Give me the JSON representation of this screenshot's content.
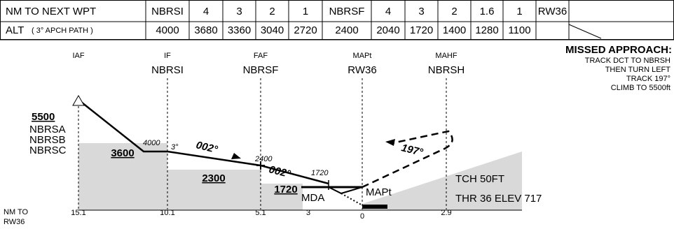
{
  "table": {
    "row_label_1": "NM TO NEXT WPT",
    "row_label_2": "ALT",
    "row_label_2_note": "( 3° APCH PATH )",
    "distances": [
      "NBRSI",
      4,
      3,
      2,
      1,
      "NBRSF",
      4,
      3,
      2,
      1.6,
      1,
      "RW36"
    ],
    "altitudes": [
      4000,
      3680,
      3360,
      3040,
      2720,
      2400,
      2040,
      1720,
      1400,
      1280,
      1100
    ]
  },
  "profile": {
    "fixes": [
      {
        "role": "IAF",
        "distance": 15.1
      },
      {
        "role": "IF",
        "name": "NBRSI",
        "distance": 10.1
      },
      {
        "role": "FAF",
        "name": "NBRSF",
        "distance": 5.1
      },
      {
        "role": "MAPt",
        "name": "RW36",
        "distance": 0
      },
      {
        "role": "MAHF",
        "name": "NBRSH",
        "distance": 2.9
      }
    ],
    "mda_distance": 3,
    "axis_label_1": "NM TO",
    "axis_label_2": "RW36",
    "initial_altitude": 5500,
    "initial_fixes": [
      "NBRSA",
      "NBRSB",
      "NBRSC"
    ],
    "sector_altitudes": [
      3600,
      2300,
      1720
    ],
    "path_altitudes": [
      4000,
      2400,
      1720
    ],
    "glide_angle": "3°",
    "course": "002°",
    "missed_course": "197°",
    "mda_label": "MDA",
    "mapt_label": "MAPt",
    "tch": "TCH 50FT",
    "threshold": "THR 36 ELEV 717",
    "missed_approach": {
      "title": "MISSED APPROACH:",
      "lines": [
        "TRACK DCT TO NBRSH",
        "THEN TURN LEFT",
        "TRACK 197°",
        "CLIMB TO 5500ft"
      ]
    }
  }
}
